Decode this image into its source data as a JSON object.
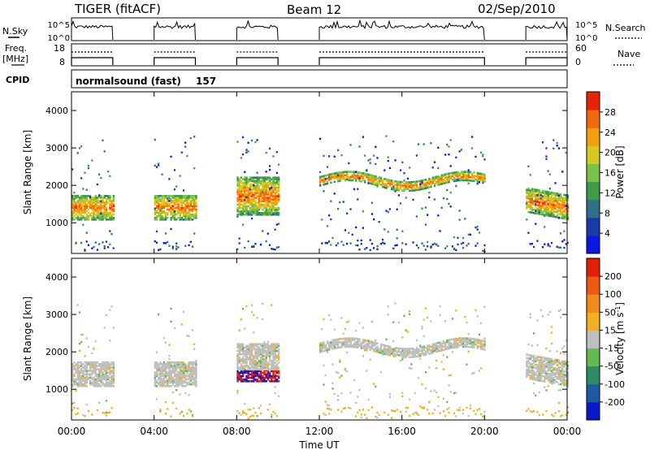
{
  "header": {
    "title": "TIGER (fitACF)",
    "beam": "Beam 12",
    "date": "02/Sep/2010"
  },
  "cpid": {
    "label": "CPID",
    "mode": "normalsound (fast)",
    "id": "157"
  },
  "strip_nsky": {
    "left_label": "N.Sky",
    "right_label": "N.Search",
    "left_ticks": [
      "10^5",
      "10^0"
    ],
    "right_ticks": [
      "10^5",
      "10^0"
    ]
  },
  "strip_freq": {
    "left_label_1": "Freq.",
    "left_label_2": "[MHz]",
    "right_label": "Nave",
    "left_ticks": [
      "18",
      "8"
    ],
    "right_ticks": [
      "60",
      "0"
    ]
  },
  "chart_data": [
    {
      "type": "heatmap",
      "title": "",
      "ylabel": "Slant Range [km]",
      "xlabel": "Time UT",
      "yticks": [
        "1000",
        "2000",
        "3000",
        "4000"
      ],
      "ylim": [
        180,
        4500
      ],
      "colorbar": {
        "label": "Power [dB]",
        "ticks": [
          "4",
          "8",
          "12",
          "16",
          "20",
          "24",
          "28"
        ],
        "range": [
          0,
          30
        ],
        "colors": [
          "#0a18e0",
          "#1a3aa8",
          "#2f6f8a",
          "#3f9a4a",
          "#7cc24a",
          "#d8c820",
          "#f3a010",
          "#f36a0c",
          "#e8230a"
        ]
      }
    },
    {
      "type": "heatmap",
      "title": "",
      "ylabel": "Slant Range [km]",
      "xlabel": "Time UT",
      "yticks": [
        "1000",
        "2000",
        "3000",
        "4000"
      ],
      "ylim": [
        180,
        4500
      ],
      "colorbar": {
        "label": "Velocity [m s^-1]",
        "ticks": [
          "200",
          "100",
          "50",
          "15",
          "-15",
          "-50",
          "-100",
          "-200"
        ],
        "range": [
          -250,
          250
        ],
        "colors": [
          "#0a18c8",
          "#1e5aa0",
          "#2f8a6a",
          "#63b84e",
          "#bfbfbf",
          "#f0b020",
          "#f08a18",
          "#ef5a12",
          "#e51e0a"
        ]
      }
    }
  ],
  "time_axis": {
    "label": "Time UT",
    "ticks": [
      "00:00",
      "04:00",
      "08:00",
      "12:00",
      "16:00",
      "20:00",
      "00:00"
    ]
  },
  "data_windows_hours": [
    [
      0.0,
      2.0
    ],
    [
      4.0,
      6.0
    ],
    [
      8.0,
      10.0
    ],
    [
      12.0,
      20.0
    ],
    [
      22.0,
      24.0
    ]
  ]
}
